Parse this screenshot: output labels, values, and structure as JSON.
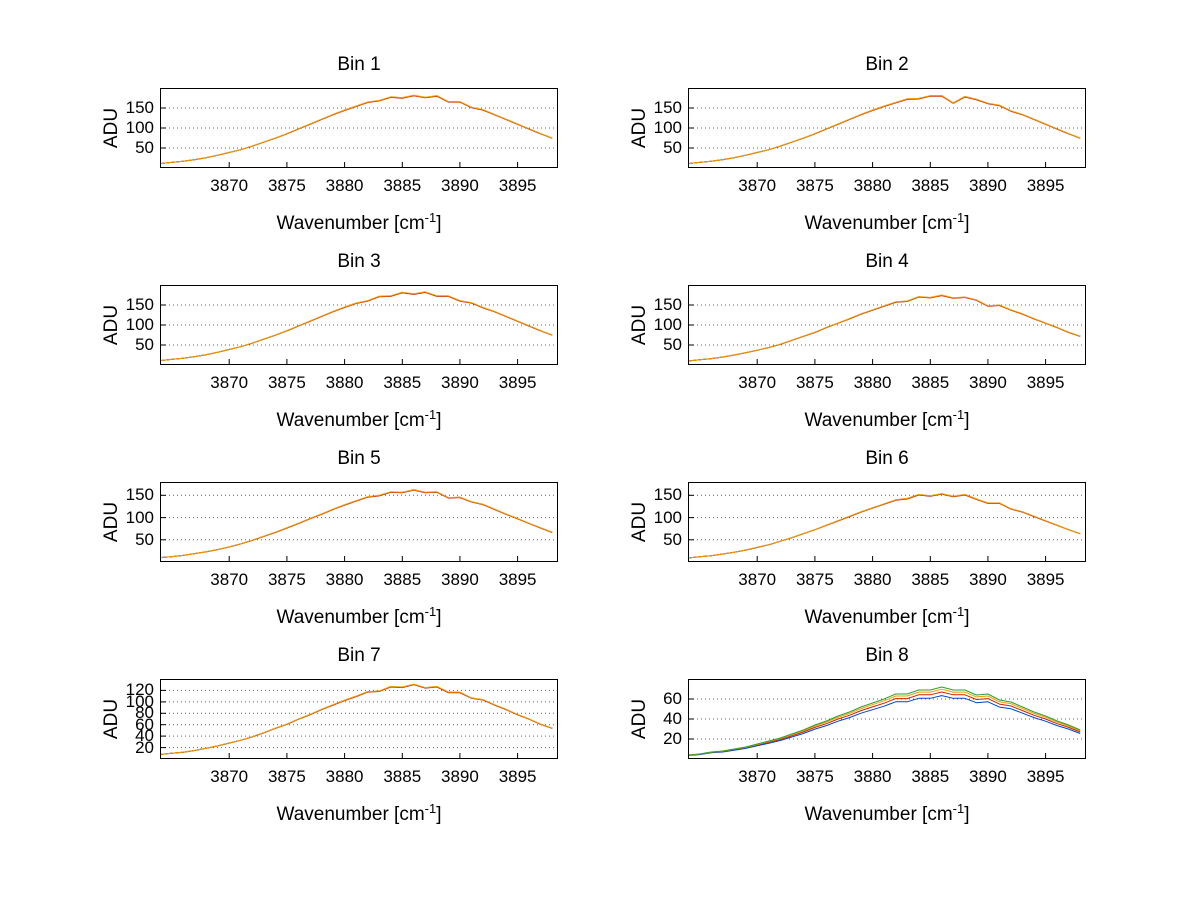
{
  "figure": {
    "background": "#ffffff"
  },
  "chart_data": {
    "type": "line",
    "grid": "dotted horizontal gridlines at y ticks",
    "legend": "none",
    "ylabel": "ADU",
    "xlabel": {
      "prefix": "Wavenumber [cm",
      "sup": "-1",
      "suffix": "]"
    },
    "xlim": [
      3864,
      3898.5
    ],
    "xticks": [
      3870,
      3875,
      3880,
      3885,
      3890,
      3895
    ],
    "x": [
      3864,
      3865,
      3866,
      3867,
      3868,
      3869,
      3870,
      3871,
      3872,
      3873,
      3874,
      3875,
      3876,
      3877,
      3878,
      3879,
      3880,
      3881,
      3882,
      3883,
      3884,
      3885,
      3886,
      3887,
      3888,
      3889,
      3890,
      3891,
      3892,
      3893,
      3894,
      3895,
      3896,
      3897,
      3898
    ],
    "colors": {
      "blue": "#0044cc",
      "green": "#2ca02c",
      "red": "#cc2200",
      "orange": "#f59a00"
    },
    "subplots": [
      {
        "title": "Bin 1",
        "ylim": [
          0,
          200
        ],
        "yticks": [
          50,
          100,
          150
        ],
        "y": [
          11,
          14,
          17,
          21,
          26,
          32,
          39,
          46,
          55,
          65,
          75,
          86,
          98,
          110,
          122,
          134,
          145,
          155,
          165,
          169,
          178,
          176,
          182,
          177,
          181,
          166,
          166,
          152,
          146,
          134,
          122,
          110,
          98,
          86,
          75
        ],
        "series": [
          {
            "name": "spectrum-blue",
            "color": "#0044cc",
            "scale": 0.995
          },
          {
            "name": "spectrum-green",
            "color": "#2ca02c",
            "scale": 0.997
          },
          {
            "name": "spectrum-red",
            "color": "#cc2200",
            "scale": 0.992
          },
          {
            "name": "spectrum-orange",
            "color": "#f59a00",
            "scale": 1.0
          }
        ]
      },
      {
        "title": "Bin 2",
        "ylim": [
          0,
          200
        ],
        "yticks": [
          50,
          100,
          150
        ],
        "y": [
          11,
          14,
          17,
          21,
          26,
          32,
          39,
          46,
          55,
          65,
          75,
          86,
          98,
          110,
          122,
          134,
          145,
          155,
          164,
          173,
          174,
          181,
          181,
          163,
          179,
          172,
          162,
          157,
          143,
          134,
          122,
          110,
          98,
          86,
          75
        ],
        "series": [
          {
            "name": "spectrum-blue",
            "color": "#0044cc",
            "scale": 0.995
          },
          {
            "name": "spectrum-green",
            "color": "#2ca02c",
            "scale": 0.997
          },
          {
            "name": "spectrum-red",
            "color": "#cc2200",
            "scale": 0.992
          },
          {
            "name": "spectrum-orange",
            "color": "#f59a00",
            "scale": 1.0
          }
        ]
      },
      {
        "title": "Bin 3",
        "ylim": [
          0,
          200
        ],
        "yticks": [
          50,
          100,
          150
        ],
        "y": [
          11,
          14,
          17,
          21,
          26,
          32,
          39,
          46,
          55,
          65,
          75,
          86,
          98,
          110,
          122,
          134,
          145,
          155,
          161,
          172,
          173,
          182,
          178,
          183,
          173,
          173,
          161,
          156,
          144,
          134,
          122,
          110,
          98,
          86,
          75
        ],
        "series": [
          {
            "name": "spectrum-blue",
            "color": "#0044cc",
            "scale": 0.995
          },
          {
            "name": "spectrum-green",
            "color": "#2ca02c",
            "scale": 0.997
          },
          {
            "name": "spectrum-red",
            "color": "#cc2200",
            "scale": 0.992
          },
          {
            "name": "spectrum-orange",
            "color": "#f59a00",
            "scale": 1.0
          }
        ]
      },
      {
        "title": "Bin 4",
        "ylim": [
          0,
          200
        ],
        "yticks": [
          50,
          100,
          150
        ],
        "y": [
          10,
          13,
          16,
          20,
          25,
          31,
          37,
          44,
          52,
          62,
          72,
          82,
          94,
          105,
          116,
          128,
          138,
          148,
          158,
          160,
          171,
          169,
          175,
          168,
          170,
          163,
          148,
          150,
          138,
          128,
          116,
          105,
          94,
          82,
          72
        ],
        "series": [
          {
            "name": "spectrum-blue",
            "color": "#0044cc",
            "scale": 0.995
          },
          {
            "name": "spectrum-green",
            "color": "#2ca02c",
            "scale": 0.997
          },
          {
            "name": "spectrum-red",
            "color": "#cc2200",
            "scale": 0.992
          },
          {
            "name": "spectrum-orange",
            "color": "#f59a00",
            "scale": 1.0
          }
        ]
      },
      {
        "title": "Bin 5",
        "ylim": [
          0,
          180
        ],
        "yticks": [
          50,
          100,
          150
        ],
        "y": [
          10,
          12,
          15,
          19,
          23,
          28,
          34,
          41,
          49,
          58,
          67,
          77,
          87,
          98,
          108,
          119,
          129,
          138,
          147,
          150,
          158,
          157,
          163,
          157,
          158,
          145,
          146,
          136,
          130,
          119,
          108,
          98,
          87,
          77,
          67
        ],
        "series": [
          {
            "name": "spectrum-blue",
            "color": "#0044cc",
            "scale": 0.995
          },
          {
            "name": "spectrum-green",
            "color": "#2ca02c",
            "scale": 0.997
          },
          {
            "name": "spectrum-red",
            "color": "#cc2200",
            "scale": 0.992
          },
          {
            "name": "spectrum-orange",
            "color": "#f59a00",
            "scale": 1.0
          }
        ]
      },
      {
        "title": "Bin 6",
        "ylim": [
          0,
          180
        ],
        "yticks": [
          50,
          100,
          150
        ],
        "y": [
          9,
          12,
          14,
          18,
          22,
          27,
          33,
          39,
          47,
          55,
          64,
          73,
          83,
          93,
          103,
          113,
          122,
          131,
          140,
          143,
          152,
          149,
          154,
          148,
          152,
          142,
          133,
          133,
          120,
          113,
          103,
          93,
          83,
          73,
          64
        ],
        "series": [
          {
            "name": "spectrum-blue",
            "color": "#0044cc",
            "scale": 0.995
          },
          {
            "name": "spectrum-green",
            "color": "#2ca02c",
            "scale": 0.997
          },
          {
            "name": "spectrum-red",
            "color": "#cc2200",
            "scale": 0.992
          },
          {
            "name": "spectrum-orange",
            "color": "#f59a00",
            "scale": 1.0
          }
        ]
      },
      {
        "title": "Bin 7",
        "ylim": [
          0,
          140
        ],
        "yticks": [
          20,
          40,
          60,
          80,
          100,
          120
        ],
        "y": [
          8,
          10,
          12,
          15,
          19,
          23,
          28,
          33,
          39,
          46,
          54,
          61,
          70,
          78,
          87,
          95,
          103,
          110,
          118,
          119,
          127,
          126,
          131,
          125,
          127,
          117,
          117,
          107,
          104,
          95,
          87,
          78,
          70,
          61,
          54
        ],
        "series": [
          {
            "name": "spectrum-blue",
            "color": "#0044cc",
            "scale": 0.995
          },
          {
            "name": "spectrum-green",
            "color": "#2ca02c",
            "scale": 0.997
          },
          {
            "name": "spectrum-red",
            "color": "#cc2200",
            "scale": 0.992
          },
          {
            "name": "spectrum-orange",
            "color": "#f59a00",
            "scale": 1.0
          }
        ]
      },
      {
        "title": "Bin 8",
        "ylim": [
          0,
          80
        ],
        "yticks": [
          20,
          40,
          60
        ],
        "y": [
          4,
          5,
          7,
          8,
          10,
          12,
          15,
          18,
          21,
          25,
          29,
          34,
          38,
          43,
          47,
          52,
          56,
          60,
          65,
          65,
          69,
          69,
          72,
          69,
          69,
          64,
          65,
          59,
          57,
          52,
          47,
          43,
          38,
          34,
          29
        ],
        "series": [
          {
            "name": "spectrum-red",
            "color": "#cc2200",
            "scale": 0.93
          },
          {
            "name": "spectrum-blue",
            "color": "#0044cc",
            "scale": 0.88
          },
          {
            "name": "spectrum-orange",
            "color": "#f59a00",
            "scale": 0.97
          },
          {
            "name": "spectrum-green",
            "color": "#2ca02c",
            "scale": 1.0
          }
        ]
      }
    ]
  }
}
